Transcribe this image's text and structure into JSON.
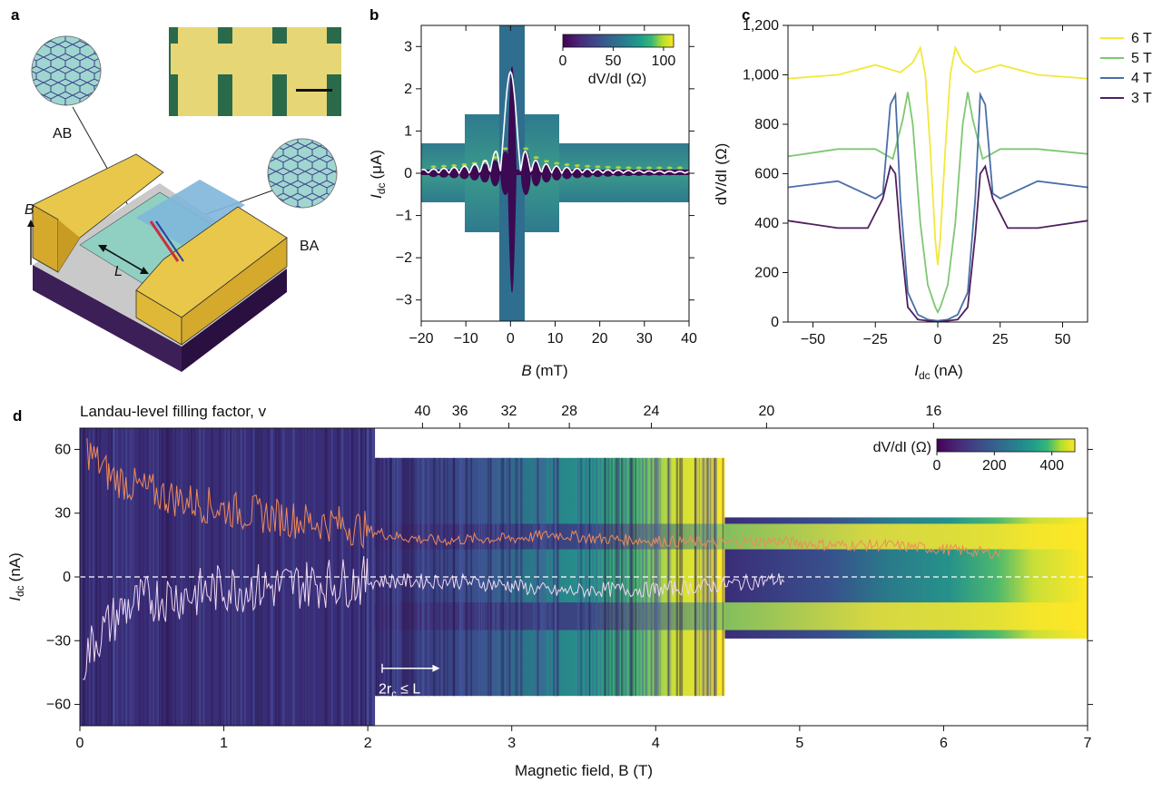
{
  "panels": {
    "a": {
      "letter": "a",
      "labels": {
        "ab": "AB",
        "ba": "BA",
        "b": "B",
        "l": "L"
      }
    },
    "b": {
      "letter": "b"
    },
    "c": {
      "letter": "c"
    },
    "d": {
      "letter": "d"
    }
  },
  "colors": {
    "viridis": [
      "#440154",
      "#482878",
      "#3e4989",
      "#31688e",
      "#26828e",
      "#1f9e89",
      "#35b779",
      "#6ece58",
      "#b5de2b",
      "#fde725"
    ],
    "gold": "#e8c74a",
    "substrate": "#3d1f57",
    "channel": "#8fd0c2"
  },
  "chart_data": [
    {
      "id": "b",
      "type": "heatmap",
      "xlabel_var": "B",
      "xlabel_unit": "(mT)",
      "ylabel_var": "I",
      "ylabel_sub": "dc",
      "ylabel_unit": "(μA)",
      "xlim": [
        -20,
        40
      ],
      "ylim": [
        -3.5,
        3.5
      ],
      "xticks": [
        "−20",
        "−10",
        "0",
        "10",
        "20",
        "30",
        "40"
      ],
      "xtick_values": [
        -20,
        -10,
        0,
        10,
        20,
        30,
        40
      ],
      "yticks": [
        "3",
        "2",
        "1",
        "0",
        "−1",
        "−2",
        "−3"
      ],
      "ytick_values": [
        3,
        2,
        1,
        0,
        -1,
        -2,
        -3
      ],
      "colorbar": {
        "label": "dV/dI (Ω)",
        "ticks": [
          "0",
          "50",
          "100"
        ],
        "tick_values": [
          0,
          50,
          100
        ],
        "range": [
          0,
          110
        ]
      },
      "critical_current_peak_uA": 2.4
    },
    {
      "id": "c",
      "type": "line",
      "xlabel_var": "I",
      "xlabel_sub": "dc",
      "xlabel_unit": "(nA)",
      "ylabel": "dV/dI (Ω)",
      "xlim": [
        -60,
        60
      ],
      "ylim": [
        0,
        1200
      ],
      "xticks": [
        "−50",
        "−25",
        "0",
        "25",
        "50"
      ],
      "xtick_values": [
        -50,
        -25,
        0,
        25,
        50
      ],
      "yticks": [
        "0",
        "200",
        "400",
        "600",
        "800",
        "1,000",
        "1,200"
      ],
      "ytick_values": [
        0,
        200,
        400,
        600,
        800,
        1000,
        1200
      ],
      "legend_position": "top-right outside",
      "series": [
        {
          "name": "6 T",
          "color": "#f2e83a",
          "x": [
            -60,
            -40,
            -25,
            -15,
            -10,
            -7,
            -5,
            -3,
            -1,
            0,
            1,
            3,
            5,
            7,
            10,
            15,
            25,
            40,
            60
          ],
          "values": [
            985,
            1000,
            1040,
            1010,
            1050,
            1110,
            1000,
            700,
            330,
            230,
            340,
            700,
            1000,
            1110,
            1050,
            1010,
            1040,
            1000,
            985
          ]
        },
        {
          "name": "5 T",
          "color": "#7dc872",
          "x": [
            -60,
            -40,
            -25,
            -18,
            -14,
            -12,
            -10,
            -7,
            -4,
            -1,
            0,
            1,
            4,
            7,
            10,
            12,
            14,
            18,
            25,
            40,
            60
          ],
          "values": [
            670,
            700,
            700,
            660,
            820,
            930,
            800,
            400,
            150,
            60,
            40,
            60,
            150,
            400,
            800,
            930,
            820,
            660,
            700,
            700,
            680
          ]
        },
        {
          "name": "4 T",
          "color": "#4a6ea8",
          "x": [
            -60,
            -40,
            -25,
            -22,
            -19,
            -17,
            -15,
            -12,
            -8,
            -4,
            0,
            4,
            8,
            12,
            15,
            17,
            19,
            22,
            25,
            40,
            60
          ],
          "values": [
            545,
            570,
            500,
            520,
            880,
            920,
            500,
            120,
            30,
            10,
            5,
            10,
            30,
            120,
            500,
            920,
            880,
            520,
            500,
            570,
            545
          ]
        },
        {
          "name": "3 T",
          "color": "#4e1f5e",
          "x": [
            -60,
            -40,
            -28,
            -22,
            -19,
            -17,
            -15,
            -12,
            -8,
            -4,
            0,
            4,
            8,
            12,
            15,
            17,
            19,
            22,
            28,
            40,
            60
          ],
          "values": [
            410,
            380,
            380,
            500,
            630,
            600,
            350,
            60,
            10,
            5,
            0,
            5,
            10,
            60,
            350,
            600,
            630,
            500,
            380,
            380,
            410
          ]
        }
      ]
    },
    {
      "id": "d",
      "type": "heatmap",
      "xlabel": "Magnetic field, B (T)",
      "ylabel_var": "I",
      "ylabel_sub": "dc",
      "ylabel_unit": "(nA)",
      "xlim": [
        0,
        7
      ],
      "ylim": [
        -70,
        70
      ],
      "xticks": [
        "0",
        "1",
        "2",
        "3",
        "4",
        "5",
        "6",
        "7"
      ],
      "xtick_values": [
        0,
        1,
        2,
        3,
        4,
        5,
        6,
        7
      ],
      "yticks": [
        "60",
        "30",
        "0",
        "−30",
        "−60"
      ],
      "ytick_values": [
        60,
        30,
        0,
        -30,
        -60
      ],
      "top_axis": {
        "label": "Landau-level filling factor, v",
        "ticks": [
          "40",
          "36",
          "32",
          "28",
          "24",
          "20",
          "16"
        ],
        "tick_positions_T": [
          2.38,
          2.64,
          2.98,
          3.4,
          3.97,
          4.77,
          5.93
        ]
      },
      "colorbar": {
        "label": "dV/dI (Ω)",
        "ticks": [
          "0",
          "200",
          "400"
        ],
        "tick_values": [
          0,
          200,
          400
        ],
        "range": [
          0,
          480
        ]
      },
      "annotation": {
        "text_var": "2r",
        "text_sub": "c",
        "text_rest": " ≤ L",
        "arrow_from_T": 2.1,
        "arrow_to_T": 2.5
      },
      "regions": [
        {
          "x": [
            0,
            2.05
          ],
          "y": [
            -70,
            70
          ]
        },
        {
          "x": [
            2.05,
            4.48
          ],
          "y": [
            -56,
            56
          ]
        },
        {
          "x": [
            4.48,
            7.0
          ],
          "y": [
            -29,
            28
          ]
        }
      ],
      "orange_trace_x": [
        0.05,
        0.2,
        0.4,
        0.6,
        0.8,
        1.0,
        1.2,
        1.4,
        1.6,
        1.8,
        2.0,
        2.2,
        2.5,
        2.8,
        3.0,
        3.3,
        3.6,
        4.0,
        4.4,
        4.8,
        5.2,
        5.6,
        6.0,
        6.4
      ],
      "orange_trace_y": [
        60,
        48,
        42,
        38,
        35,
        32,
        30,
        28,
        26,
        25,
        22,
        19,
        17,
        18,
        18,
        20,
        18,
        17,
        16,
        17,
        15,
        15,
        13,
        11
      ],
      "white_trace_x": [
        0.02,
        0.1,
        0.3,
        0.5,
        0.8,
        1.0,
        1.3,
        1.6,
        2.0,
        2.3,
        2.6,
        3.0,
        3.3,
        3.6,
        4.0,
        4.4,
        4.9
      ],
      "white_trace_y": [
        -40,
        -30,
        -15,
        -10,
        -8,
        -5,
        -5,
        -3,
        -2,
        -2,
        -2,
        -4,
        -7,
        -6,
        -6,
        -4,
        -1
      ]
    }
  ]
}
